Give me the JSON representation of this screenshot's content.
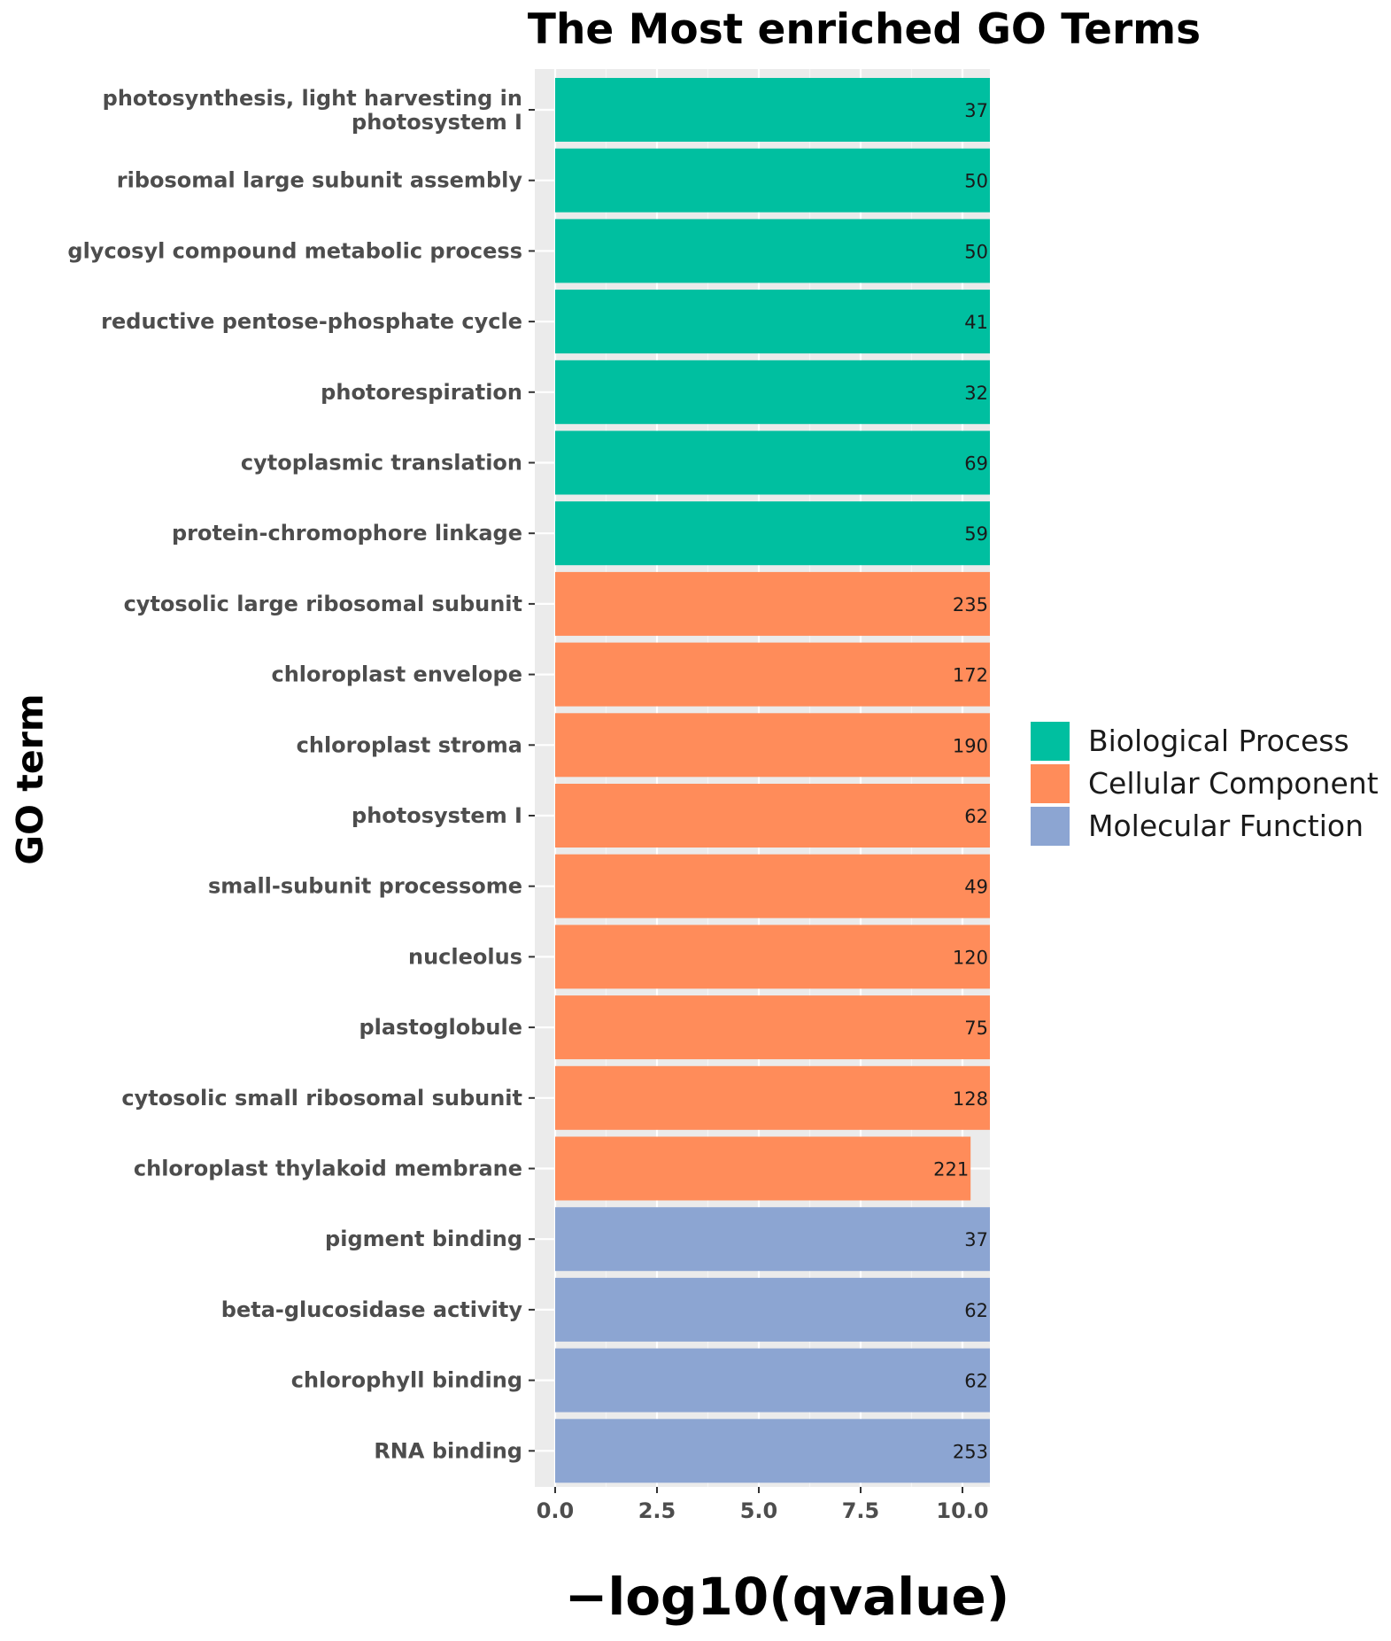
{
  "chart_data": {
    "type": "bar",
    "orientation": "horizontal",
    "title": "The Most enriched GO Terms",
    "xlabel": "−log10(qvalue)",
    "ylabel": "GO term",
    "xlim": [
      0,
      10.4
    ],
    "xticks": [
      "0.0",
      "2.5",
      "5.0",
      "7.5",
      "10.0"
    ],
    "xtick_values": [
      0,
      2.5,
      5,
      7.5,
      10
    ],
    "grid": true,
    "legend_position": "right",
    "groups": [
      {
        "name": "Biological Process",
        "color": "#00bfa0"
      },
      {
        "name": "Cellular Component",
        "color": "#ff8c5a"
      },
      {
        "name": "Molecular Function",
        "color": "#8ca5d2"
      }
    ],
    "categories": [
      "photosynthesis, light harvesting in photosystem I",
      "ribosomal large subunit assembly",
      "glycosyl compound metabolic process",
      "reductive pentose-phosphate cycle",
      "photorespiration",
      "cytoplasmic translation",
      "protein-chromophore linkage",
      "cytosolic large ribosomal subunit",
      "chloroplast envelope",
      "chloroplast stroma",
      "photosystem I",
      "small-subunit processome",
      "nucleolus",
      "plastoglobule",
      "cytosolic small ribosomal subunit",
      "chloroplast thylakoid membrane",
      "pigment binding",
      "beta-glucosidase activity",
      "chlorophyll binding",
      "RNA binding"
    ],
    "category_lines": [
      [
        "photosynthesis, light harvesting in",
        "photosystem I"
      ],
      [
        "ribosomal large subunit assembly"
      ],
      [
        "glycosyl compound metabolic process"
      ],
      [
        "reductive pentose-phosphate cycle"
      ],
      [
        "photorespiration"
      ],
      [
        "cytoplasmic translation"
      ],
      [
        "protein-chromophore linkage"
      ],
      [
        "cytosolic large ribosomal subunit"
      ],
      [
        "chloroplast envelope"
      ],
      [
        "chloroplast stroma"
      ],
      [
        "photosystem I"
      ],
      [
        "small-subunit processome"
      ],
      [
        "nucleolus"
      ],
      [
        "plastoglobule"
      ],
      [
        "cytosolic small ribosomal subunit"
      ],
      [
        "chloroplast thylakoid membrane"
      ],
      [
        "pigment binding"
      ],
      [
        "beta-glucosidase activity"
      ],
      [
        "chlorophyll binding"
      ],
      [
        "RNA binding"
      ]
    ],
    "values": [
      10.7,
      10.7,
      10.7,
      10.7,
      10.7,
      10.7,
      10.7,
      10.7,
      10.7,
      10.7,
      10.7,
      10.7,
      10.7,
      10.7,
      10.7,
      10.2,
      10.7,
      10.7,
      10.7,
      10.7
    ],
    "value_note": "bars extend beyond visible axis limit",
    "group_index": [
      0,
      0,
      0,
      0,
      0,
      0,
      0,
      1,
      1,
      1,
      1,
      1,
      1,
      1,
      1,
      1,
      2,
      2,
      2,
      2
    ],
    "bar_labels": [
      "37",
      "50",
      "50",
      "41",
      "32",
      "69",
      "59",
      "235",
      "172",
      "190",
      "62",
      "49",
      "120",
      "75",
      "128",
      "221",
      "37",
      "62",
      "62",
      "253"
    ]
  }
}
